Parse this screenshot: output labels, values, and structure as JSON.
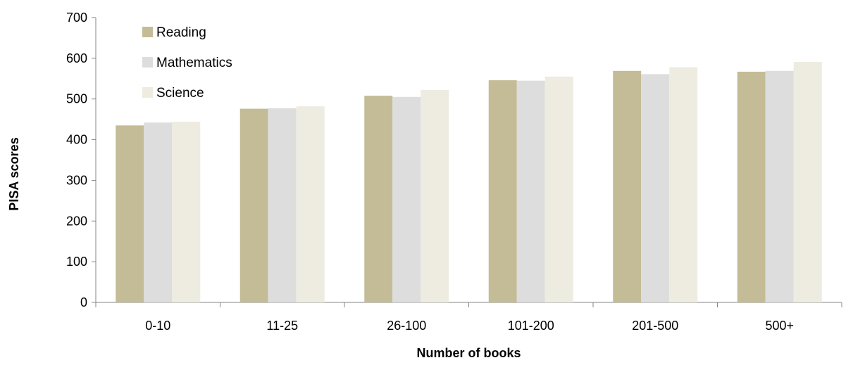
{
  "chart_data": {
    "type": "bar",
    "title": "",
    "xlabel": "Number of books",
    "ylabel": "PISA scores",
    "categories": [
      "0-10",
      "11-25",
      "26-100",
      "101-200",
      "201-500",
      "500+"
    ],
    "series": [
      {
        "name": "Reading",
        "color": "#c4bc96",
        "values": [
          435,
          476,
          508,
          546,
          569,
          567
        ]
      },
      {
        "name": "Mathematics",
        "color": "#dddddd",
        "values": [
          442,
          477,
          505,
          545,
          561,
          569
        ]
      },
      {
        "name": "Science",
        "color": "#eeece1",
        "values": [
          444,
          482,
          522,
          555,
          578,
          591
        ]
      }
    ],
    "ylim": [
      0,
      700
    ],
    "yticks": [
      0,
      100,
      200,
      300,
      400,
      500,
      600,
      700
    ],
    "grid": false,
    "legend_position": "top-left"
  }
}
